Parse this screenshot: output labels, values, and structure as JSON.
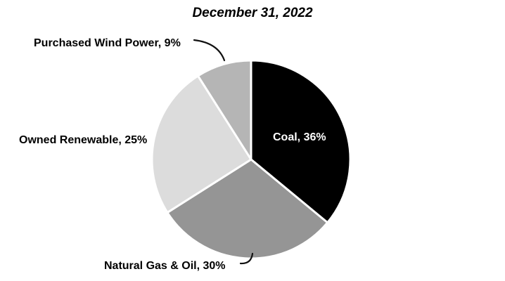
{
  "page": {
    "background_color": "#ffffff"
  },
  "chart_data": {
    "type": "pie",
    "title": "December 31, 2022",
    "legend_position": "none",
    "grid": false,
    "direction": "clockwise",
    "start_angle_deg": 0,
    "slices": [
      {
        "label": "Coal",
        "value": 36,
        "display": "Coal, 36%",
        "color": "#000000",
        "label_color": "#ffffff",
        "label_placement": "inside"
      },
      {
        "label": "Natural Gas & Oil",
        "value": 30,
        "display": "Natural Gas & Oil, 30%",
        "color": "#959595",
        "label_color": "#000000",
        "label_placement": "outside-bottom"
      },
      {
        "label": "Owned Renewable",
        "value": 25,
        "display": "Owned Renewable, 25%",
        "color": "#dcdcdc",
        "label_color": "#000000",
        "label_placement": "outside-left"
      },
      {
        "label": "Purchased Wind Power",
        "value": 9,
        "display": "Purchased Wind Power, 9%",
        "color": "#b5b5b5",
        "label_color": "#000000",
        "label_placement": "outside-top"
      }
    ]
  }
}
